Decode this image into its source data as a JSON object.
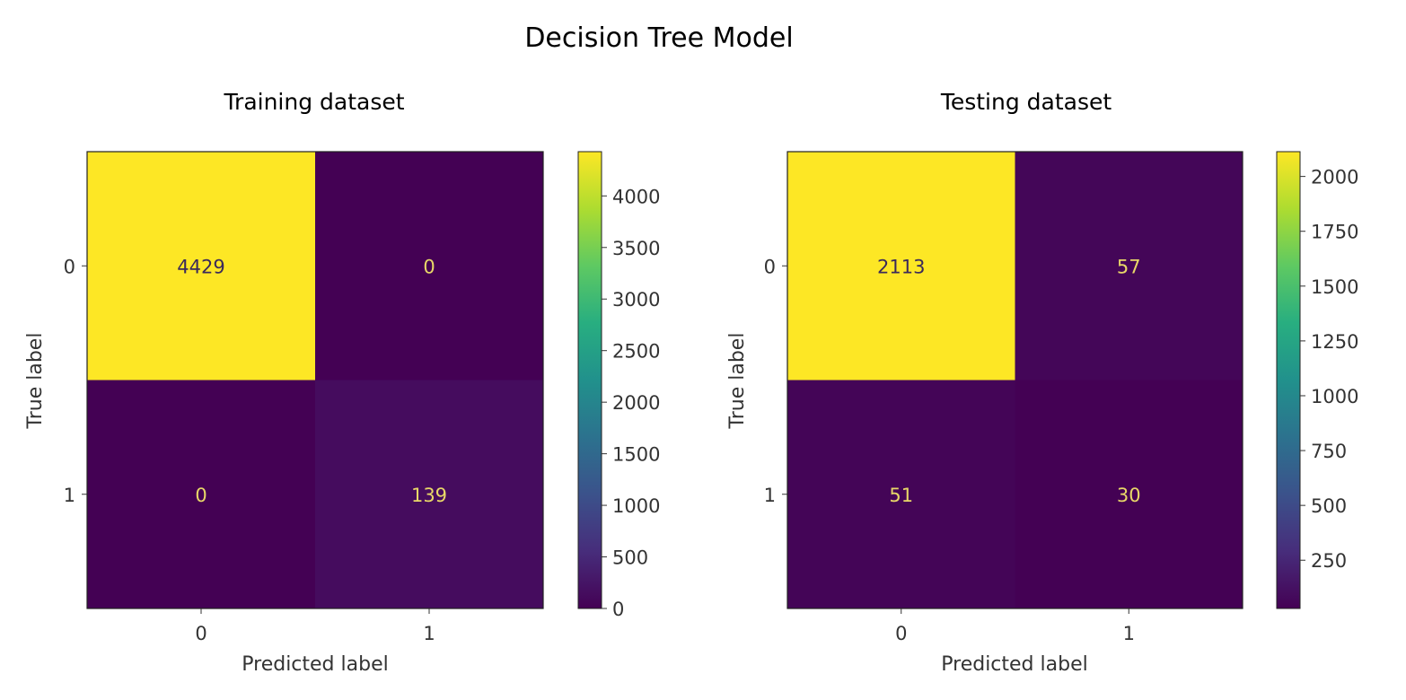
{
  "figure": {
    "title": "Decision Tree Model"
  },
  "chart_data": [
    {
      "type": "heatmap",
      "title": "Training dataset",
      "xlabel": "Predicted label",
      "ylabel": "True label",
      "x_categories": [
        "0",
        "1"
      ],
      "y_categories": [
        "0",
        "1"
      ],
      "matrix": [
        [
          4429,
          0
        ],
        [
          0,
          139
        ]
      ],
      "cell_labels": [
        [
          "4429",
          "0"
        ],
        [
          "0",
          "139"
        ]
      ],
      "colormap": "viridis",
      "vmin": 0,
      "vmax": 4429,
      "colorbar_ticks": [
        0,
        500,
        1000,
        1500,
        2000,
        2500,
        3000,
        3500,
        4000
      ],
      "colorbar_tick_labels": [
        "0",
        "500",
        "1000",
        "1500",
        "2000",
        "2500",
        "3000",
        "3500",
        "4000"
      ],
      "grid": false
    },
    {
      "type": "heatmap",
      "title": "Testing dataset",
      "xlabel": "Predicted label",
      "ylabel": "True label",
      "x_categories": [
        "0",
        "1"
      ],
      "y_categories": [
        "0",
        "1"
      ],
      "matrix": [
        [
          2113,
          57
        ],
        [
          51,
          30
        ]
      ],
      "cell_labels": [
        [
          "2113",
          "57"
        ],
        [
          "51",
          "30"
        ]
      ],
      "colormap": "viridis",
      "vmin": 30,
      "vmax": 2113,
      "colorbar_ticks": [
        250,
        500,
        750,
        1000,
        1250,
        1500,
        1750,
        2000
      ],
      "colorbar_tick_labels": [
        "250",
        "500",
        "750",
        "1000",
        "1250",
        "1500",
        "1750",
        "2000"
      ],
      "grid": false
    }
  ]
}
